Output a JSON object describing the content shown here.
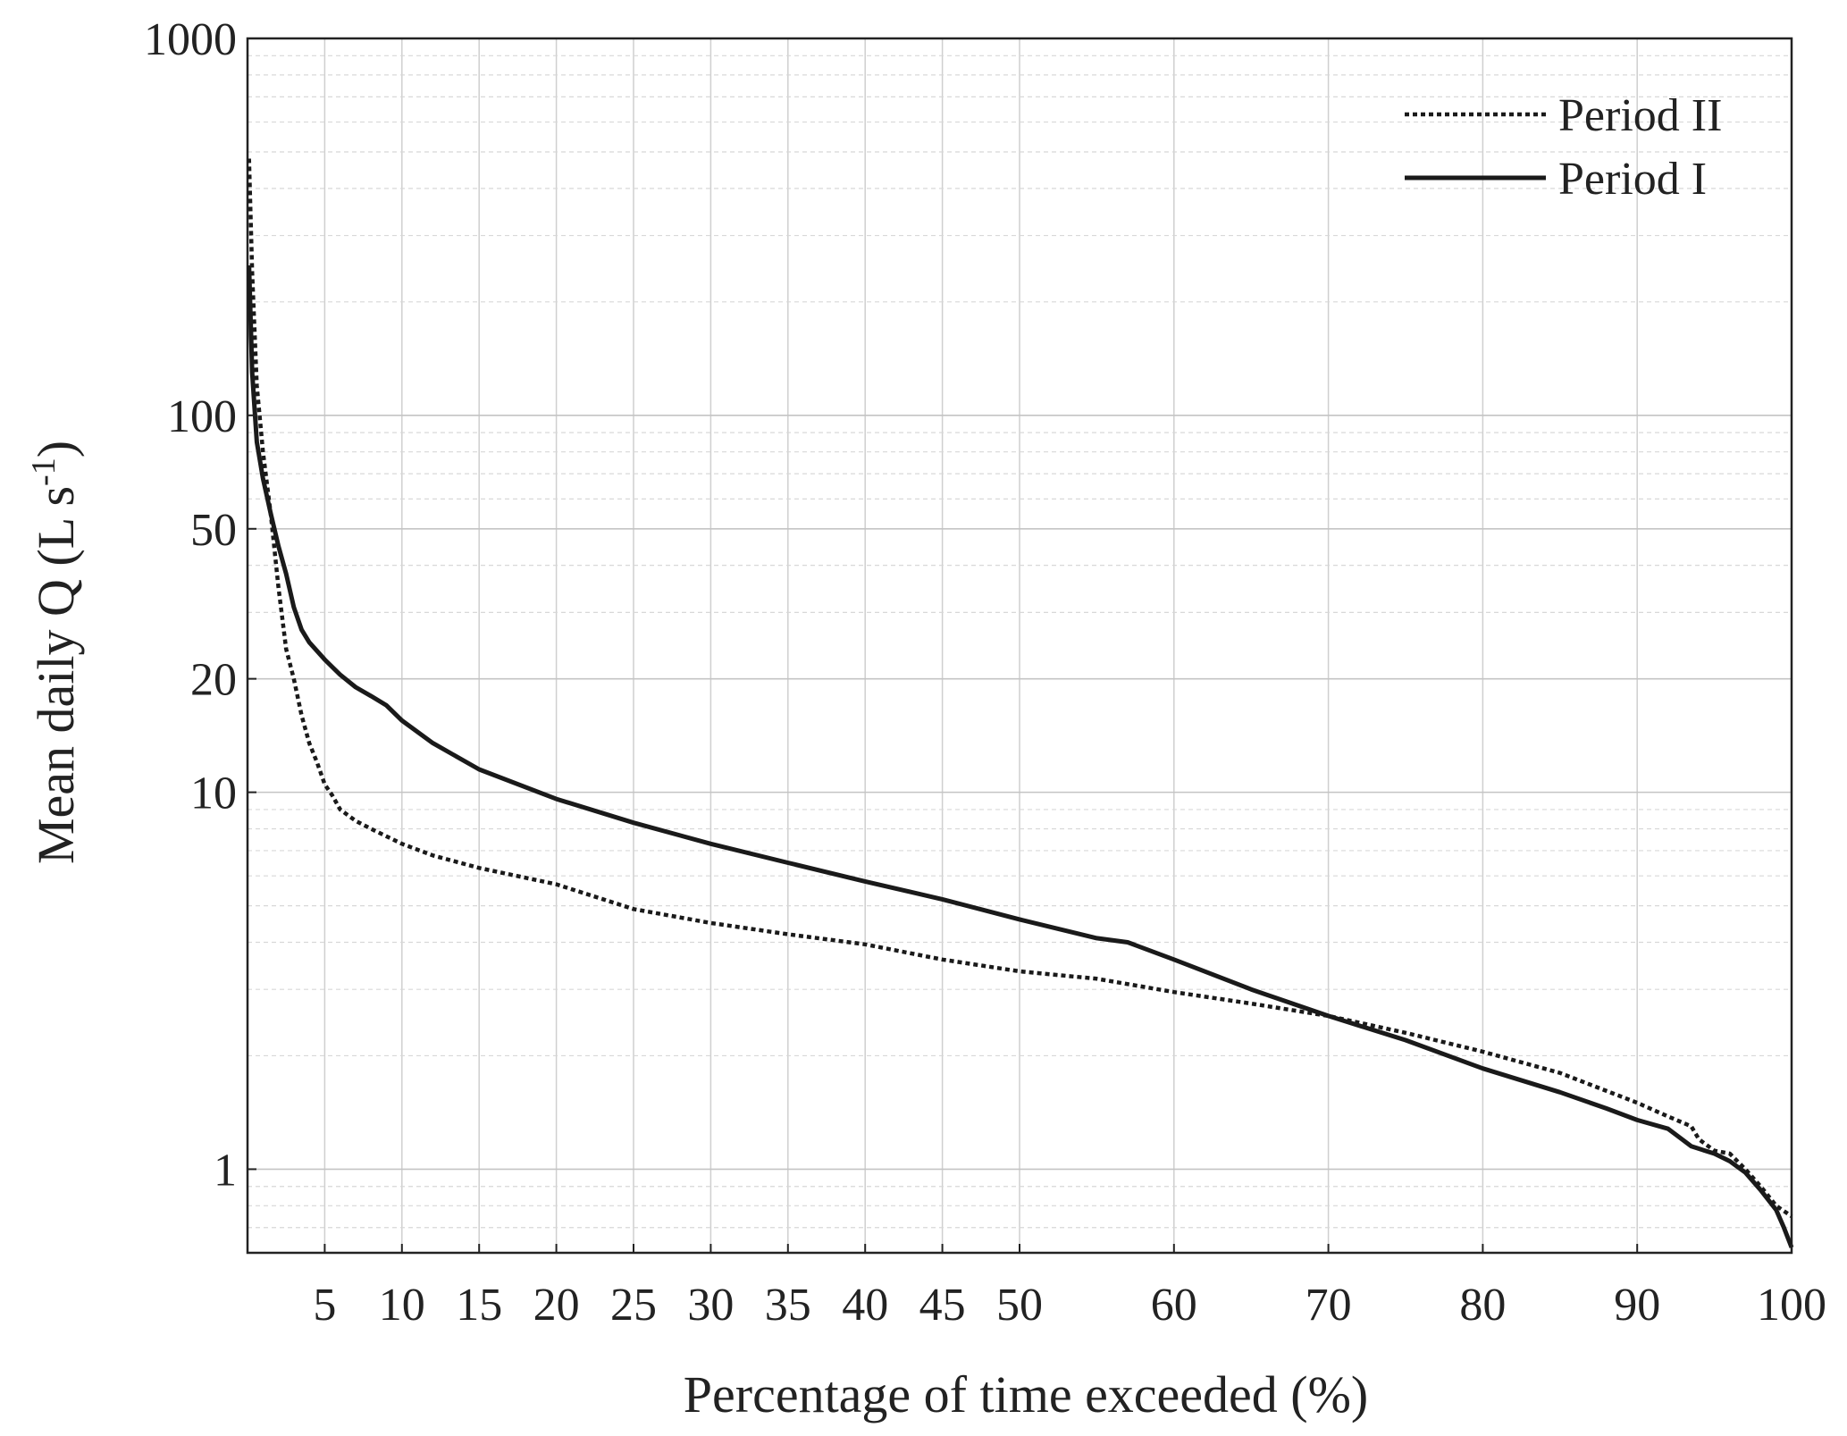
{
  "chart_data": {
    "type": "line",
    "title": "",
    "xlabel": "Percentage of time exceeded (%)",
    "ylabel_text": "Mean daily Q (L s",
    "ylabel_superscript": "-1",
    "ylabel_suffix": ")",
    "xlim": [
      0,
      100
    ],
    "ylim": [
      0.6,
      1000
    ],
    "yscale": "log",
    "grid": true,
    "legend_position": "top-right",
    "x_ticks": [
      5,
      10,
      15,
      20,
      25,
      30,
      35,
      40,
      45,
      50,
      60,
      70,
      80,
      90,
      100
    ],
    "y_ticks": [
      1,
      10,
      20,
      50,
      100,
      1000
    ],
    "series": [
      {
        "name": "Period II",
        "style": "dotted",
        "color": "#1a1a1a",
        "points": [
          [
            0.1,
            480
          ],
          [
            0.3,
            240
          ],
          [
            0.6,
            120
          ],
          [
            1,
            80
          ],
          [
            1.5,
            55
          ],
          [
            2,
            35
          ],
          [
            2.5,
            24
          ],
          [
            3,
            20
          ],
          [
            3.5,
            16
          ],
          [
            4,
            13.5
          ],
          [
            4.5,
            12
          ],
          [
            5,
            10.5
          ],
          [
            5.5,
            9.8
          ],
          [
            6,
            9.0
          ],
          [
            7,
            8.4
          ],
          [
            8,
            8.0
          ],
          [
            10,
            7.3
          ],
          [
            12,
            6.8
          ],
          [
            15,
            6.3
          ],
          [
            20,
            5.7
          ],
          [
            25,
            4.9
          ],
          [
            30,
            4.5
          ],
          [
            35,
            4.2
          ],
          [
            40,
            3.95
          ],
          [
            45,
            3.6
          ],
          [
            50,
            3.35
          ],
          [
            55,
            3.2
          ],
          [
            60,
            2.95
          ],
          [
            65,
            2.75
          ],
          [
            70,
            2.55
          ],
          [
            75,
            2.3
          ],
          [
            80,
            2.05
          ],
          [
            85,
            1.8
          ],
          [
            90,
            1.5
          ],
          [
            92,
            1.38
          ],
          [
            93.5,
            1.3
          ],
          [
            94,
            1.2
          ],
          [
            95,
            1.12
          ],
          [
            96,
            1.1
          ],
          [
            97,
            1.0
          ],
          [
            98,
            0.9
          ],
          [
            99,
            0.8
          ],
          [
            100,
            0.75
          ]
        ]
      },
      {
        "name": "Period I",
        "style": "solid",
        "color": "#1a1a1a",
        "points": [
          [
            0.1,
            250
          ],
          [
            0.3,
            130
          ],
          [
            0.6,
            85
          ],
          [
            1,
            68
          ],
          [
            1.5,
            55
          ],
          [
            2,
            45
          ],
          [
            2.5,
            38
          ],
          [
            3,
            31
          ],
          [
            3.5,
            27
          ],
          [
            4,
            25
          ],
          [
            5,
            22.5
          ],
          [
            6,
            20.5
          ],
          [
            7,
            19
          ],
          [
            8,
            18
          ],
          [
            9,
            17
          ],
          [
            10,
            15.5
          ],
          [
            12,
            13.5
          ],
          [
            15,
            11.5
          ],
          [
            20,
            9.6
          ],
          [
            25,
            8.3
          ],
          [
            30,
            7.3
          ],
          [
            35,
            6.5
          ],
          [
            40,
            5.8
          ],
          [
            45,
            5.2
          ],
          [
            50,
            4.6
          ],
          [
            55,
            4.1
          ],
          [
            57,
            4.0
          ],
          [
            60,
            3.6
          ],
          [
            65,
            3.0
          ],
          [
            70,
            2.55
          ],
          [
            75,
            2.2
          ],
          [
            80,
            1.85
          ],
          [
            85,
            1.6
          ],
          [
            88,
            1.45
          ],
          [
            90,
            1.35
          ],
          [
            92,
            1.28
          ],
          [
            93.5,
            1.15
          ],
          [
            95,
            1.1
          ],
          [
            96,
            1.05
          ],
          [
            97,
            0.98
          ],
          [
            98,
            0.88
          ],
          [
            99,
            0.78
          ],
          [
            99.5,
            0.7
          ],
          [
            100,
            0.62
          ]
        ]
      }
    ]
  }
}
